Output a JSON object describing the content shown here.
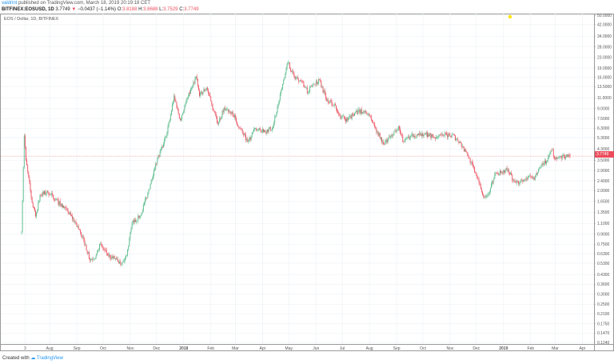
{
  "header": {
    "user": "valdrint",
    "published": " published on TradingView.com, March 18, 2019 20:19:18 CET"
  },
  "symbol": {
    "name": "BITFINEX:EOSUSD, 1D",
    "last": "3.7749",
    "arrow": "▼",
    "change": "−0.0437 (−1.14%)",
    "o_label": "O:",
    "o": "3.8188",
    "h_label": "H:",
    "h": "3.8688",
    "l_label": "L:",
    "l": "3.7529",
    "c_label": "C:",
    "c": "3.7749"
  },
  "legend": "EOS / Dollar, 1D, BITFINEX",
  "price_tag": "3.7749",
  "footer": {
    "created": "Created with",
    "brand": "TradingView"
  },
  "colors": {
    "up": "#53b987",
    "down": "#eb4d5c",
    "grid": "#eef2f6",
    "axis": "#9a9a9a",
    "marker": "#ffe500"
  },
  "chart_data": {
    "type": "candlestick",
    "title": "EOS / Dollar, 1D, BITFINEX",
    "yscale": "log",
    "ylim": [
      0.124,
      50
    ],
    "y_ticks": [
      "50.0000",
      "42.0000",
      "34.0000",
      "28.0000",
      "23.0000",
      "19.0000",
      "16.0000",
      "13.5000",
      "11.0000",
      "9.0000",
      "7.5000",
      "6.3000",
      "5.3000",
      "4.3000",
      "3.5000",
      "2.9000",
      "2.4000",
      "2.0000",
      "1.6500",
      "1.3500",
      "1.1000",
      "0.9000",
      "0.7500",
      "0.6300",
      "0.5300",
      "0.4300",
      "0.3600",
      "0.3000",
      "0.2500",
      "0.2100",
      "0.1750",
      "0.1470",
      "0.1240"
    ],
    "x_ticks": [
      [
        "3",
        4
      ],
      [
        "Aug",
        32
      ],
      [
        "Sep",
        63
      ],
      [
        "Oct",
        93
      ],
      [
        "Nov",
        124
      ],
      [
        "Dec",
        154
      ],
      [
        "2018",
        185
      ],
      [
        "Feb",
        216
      ],
      [
        "Mar",
        244
      ],
      [
        "Apr",
        275
      ],
      [
        "May",
        305
      ],
      [
        "Jun",
        336
      ],
      [
        "Jul",
        366
      ],
      [
        "Aug",
        397
      ],
      [
        "Sep",
        428
      ],
      [
        "Oct",
        458
      ],
      [
        "Nov",
        489
      ],
      [
        "Dec",
        519
      ],
      [
        "2019",
        550
      ],
      [
        "Feb",
        581
      ],
      [
        "Mar",
        609
      ],
      [
        "Apr",
        640
      ]
    ],
    "anchors_day_close": [
      [
        0,
        0.95
      ],
      [
        3,
        5.5
      ],
      [
        5,
        3.5
      ],
      [
        12,
        1.6
      ],
      [
        16,
        1.25
      ],
      [
        21,
        1.85
      ],
      [
        30,
        1.95
      ],
      [
        39,
        1.7
      ],
      [
        53,
        1.35
      ],
      [
        62,
        1.1
      ],
      [
        71,
        0.81
      ],
      [
        78,
        0.56
      ],
      [
        85,
        0.61
      ],
      [
        89,
        0.75
      ],
      [
        99,
        0.61
      ],
      [
        108,
        0.57
      ],
      [
        114,
        0.52
      ],
      [
        120,
        0.61
      ],
      [
        126,
        1.1
      ],
      [
        135,
        1.25
      ],
      [
        144,
        1.9
      ],
      [
        153,
        3.3
      ],
      [
        162,
        4.7
      ],
      [
        169,
        7.3
      ],
      [
        174,
        11.4
      ],
      [
        181,
        7.3
      ],
      [
        187,
        9.8
      ],
      [
        194,
        13.2
      ],
      [
        199,
        16.3
      ],
      [
        203,
        11.4
      ],
      [
        211,
        13.2
      ],
      [
        217,
        9.8
      ],
      [
        224,
        6.8
      ],
      [
        231,
        9.1
      ],
      [
        240,
        8.5
      ],
      [
        249,
        6.3
      ],
      [
        258,
        4.9
      ],
      [
        267,
        6.3
      ],
      [
        276,
        5.9
      ],
      [
        286,
        6.3
      ],
      [
        293,
        9.8
      ],
      [
        299,
        15.2
      ],
      [
        304,
        21
      ],
      [
        311,
        16.3
      ],
      [
        318,
        15.2
      ],
      [
        327,
        12.2
      ],
      [
        333,
        14.2
      ],
      [
        340,
        15.2
      ],
      [
        348,
        10.5
      ],
      [
        357,
        9.8
      ],
      [
        363,
        7.9
      ],
      [
        372,
        7.3
      ],
      [
        381,
        8.5
      ],
      [
        391,
        8.5
      ],
      [
        397,
        7.9
      ],
      [
        404,
        6.3
      ],
      [
        413,
        4.7
      ],
      [
        422,
        5.5
      ],
      [
        430,
        6.5
      ],
      [
        436,
        4.9
      ],
      [
        445,
        5.5
      ],
      [
        454,
        5.6
      ],
      [
        464,
        5.6
      ],
      [
        473,
        5.3
      ],
      [
        482,
        5.5
      ],
      [
        491,
        5.6
      ],
      [
        500,
        4.9
      ],
      [
        509,
        3.8
      ],
      [
        518,
        2.8
      ],
      [
        523,
        2.25
      ],
      [
        527,
        1.8
      ],
      [
        534,
        1.95
      ],
      [
        541,
        2.8
      ],
      [
        548,
        2.8
      ],
      [
        555,
        2.95
      ],
      [
        561,
        2.4
      ],
      [
        568,
        2.3
      ],
      [
        578,
        2.55
      ],
      [
        585,
        2.45
      ],
      [
        594,
        3.3
      ],
      [
        600,
        3.5
      ],
      [
        605,
        4.2
      ],
      [
        609,
        3.6
      ],
      [
        619,
        3.75
      ],
      [
        626,
        3.7749
      ]
    ],
    "last_price": 3.7749
  }
}
